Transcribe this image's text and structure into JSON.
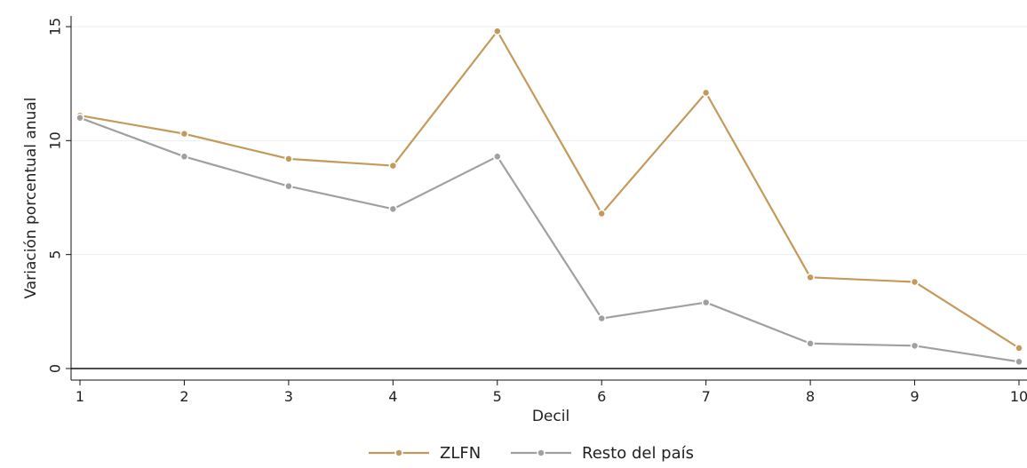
{
  "chart_data": {
    "type": "line",
    "title": "",
    "xlabel": "Decil",
    "ylabel": "Variación porcentual anual",
    "x": [
      1,
      2,
      3,
      4,
      5,
      6,
      7,
      8,
      9,
      10
    ],
    "xticks": [
      "1",
      "2",
      "3",
      "4",
      "5",
      "6",
      "7",
      "8",
      "9",
      "10"
    ],
    "yticks": [
      "0",
      "5",
      "10",
      "15"
    ],
    "ylim": [
      -0.5,
      15.5
    ],
    "xlim": [
      0.9,
      10.1
    ],
    "grid": true,
    "legend_position": "bottom",
    "series": [
      {
        "name": "ZLFN",
        "color": "#c49a5c",
        "values": [
          11.1,
          10.3,
          9.2,
          8.9,
          14.8,
          6.8,
          12.1,
          4.0,
          3.8,
          0.9
        ]
      },
      {
        "name": "Resto del país",
        "color": "#a0a0a0",
        "values": [
          11.0,
          9.3,
          8.0,
          7.0,
          9.3,
          2.2,
          2.9,
          1.1,
          1.0,
          0.3
        ]
      }
    ]
  }
}
